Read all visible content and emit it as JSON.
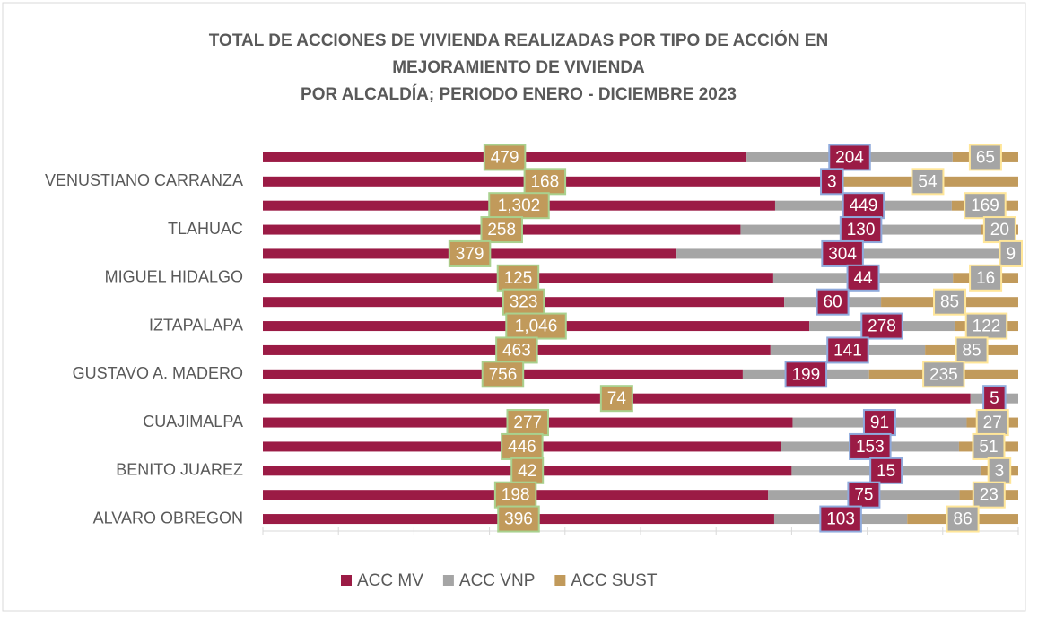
{
  "chart_data": {
    "type": "stacked_bar_100",
    "title": [
      "TOTAL DE ACCIONES DE VIVIENDA REALIZADAS POR TIPO DE ACCIÓN EN",
      "MEJORAMIENTO DE VIVIENDA",
      "POR ALCALDÍA; PERIODO ENERO - DICIEMBRE 2023"
    ],
    "categories": [
      null,
      "VENUSTIANO CARRANZA",
      null,
      "TLAHUAC",
      null,
      "MIGUEL HIDALGO",
      null,
      "IZTAPALAPA",
      null,
      "GUSTAVO A. MADERO",
      null,
      "CUAJIMALPA",
      null,
      "BENITO JUAREZ",
      null,
      "ALVARO OBREGON"
    ],
    "series": [
      {
        "name": "ACC MV",
        "color": "#9b1b45",
        "values": [
          479,
          168,
          1302,
          258,
          379,
          125,
          323,
          1046,
          463,
          756,
          74,
          277,
          446,
          42,
          198,
          396
        ],
        "value_labels": [
          "479",
          "168",
          "1,302",
          "258",
          "379",
          "125",
          "323",
          "1,046",
          "463",
          "756",
          "74",
          "277",
          "446",
          "42",
          "198",
          "396"
        ]
      },
      {
        "name": "ACC VNP",
        "color": "#a5a5a5",
        "values": [
          204,
          3,
          449,
          130,
          304,
          44,
          60,
          278,
          141,
          199,
          5,
          91,
          153,
          15,
          75,
          103
        ]
      },
      {
        "name": "ACC SUST",
        "color": "#c19a5b",
        "values": [
          65,
          54,
          169,
          20,
          9,
          16,
          85,
          122,
          85,
          235,
          null,
          27,
          51,
          3,
          23,
          86
        ]
      }
    ],
    "xlim": [
      0,
      100
    ],
    "xticks": [
      0,
      10,
      20,
      30,
      40,
      50,
      60,
      70,
      80,
      90,
      100
    ],
    "legend": "bottom"
  }
}
